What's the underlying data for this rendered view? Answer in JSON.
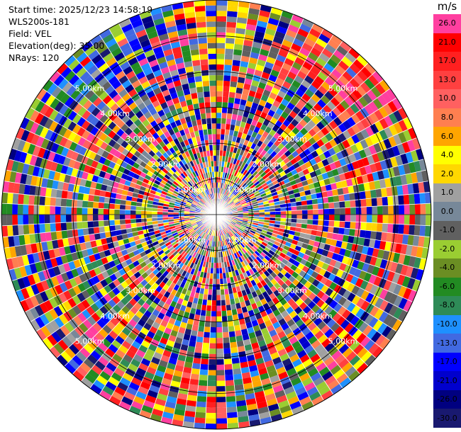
{
  "info": {
    "start_time": "Start time: 2025/12/23 14:58:19",
    "station": "WLS200s-181",
    "field": "Field: VEL",
    "elevation": "Elevation(deg): 35.00",
    "nrays": "NRays: 120"
  },
  "range_labels": [
    "1.00km",
    "2.00km",
    "3.00km",
    "4.00km",
    "5.00km"
  ],
  "colorbar": {
    "unit": "m/s",
    "levels": [
      {
        "label": "26.0",
        "color": "#ff3fa0"
      },
      {
        "label": "21.0",
        "color": "#ff0000"
      },
      {
        "label": "17.0",
        "color": "#ff2020"
      },
      {
        "label": "13.0",
        "color": "#ff4040"
      },
      {
        "label": "10.0",
        "color": "#ff6060"
      },
      {
        "label": "8.0",
        "color": "#ff7f50"
      },
      {
        "label": "6.0",
        "color": "#ffa500"
      },
      {
        "label": "4.0",
        "color": "#ffff00"
      },
      {
        "label": "2.0",
        "color": "#ffd700"
      },
      {
        "label": "1.0",
        "color": "#a0a0a0"
      },
      {
        "label": "0.0",
        "color": "#778899"
      },
      {
        "label": "-1.0",
        "color": "#606060"
      },
      {
        "label": "-2.0",
        "color": "#9acd32"
      },
      {
        "label": "-4.0",
        "color": "#6b8e23"
      },
      {
        "label": "-6.0",
        "color": "#228b22"
      },
      {
        "label": "-8.0",
        "color": "#2e8b57"
      },
      {
        "label": "-10.0",
        "color": "#1e90ff"
      },
      {
        "label": "-13.0",
        "color": "#4169e1"
      },
      {
        "label": "-17.0",
        "color": "#0000ff"
      },
      {
        "label": "-21.0",
        "color": "#0000cd"
      },
      {
        "label": "-26.0",
        "color": "#000080"
      },
      {
        "label": "-30.0",
        "color": "#191970"
      }
    ]
  }
}
